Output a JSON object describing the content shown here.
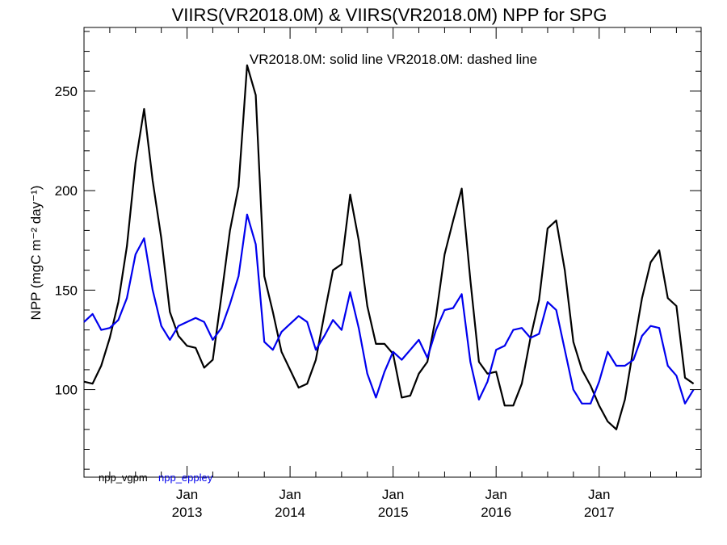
{
  "chart_data": {
    "type": "line",
    "title": "VIIRS(VR2018.0M) & VIIRS(VR2018.0M)  NPP for SPG",
    "annotation": "VR2018.0M: solid line   VR2018.0M: dashed line",
    "ylabel": "NPP (mgC m⁻² day⁻¹)",
    "xlabel": "",
    "ylim": [
      56,
      282
    ],
    "xlim": [
      2012.0,
      2017.99
    ],
    "y_ticks": [
      100,
      150,
      200,
      250
    ],
    "x_ticks": [
      {
        "value": 2013.0,
        "month": "Jan",
        "year": "2013"
      },
      {
        "value": 2014.0,
        "month": "Jan",
        "year": "2014"
      },
      {
        "value": 2015.0,
        "month": "Jan",
        "year": "2015"
      },
      {
        "value": 2016.0,
        "month": "Jan",
        "year": "2016"
      },
      {
        "value": 2017.0,
        "month": "Jan",
        "year": "2017"
      }
    ],
    "grid": false,
    "legend_position": "bottom-left",
    "x_start": 2012.0,
    "x_step": 0.08333,
    "series": [
      {
        "name": "npp_vgpm",
        "color": "#000000",
        "values": [
          104,
          103,
          112,
          126,
          144,
          172,
          214,
          241,
          205,
          176,
          139,
          127,
          122,
          121,
          111,
          115,
          147,
          180,
          202,
          263,
          248,
          157,
          139,
          119,
          110,
          101,
          103,
          115,
          138,
          160,
          163,
          198,
          175,
          142,
          123,
          123,
          118,
          96,
          97,
          108,
          114,
          137,
          168,
          185,
          201,
          155,
          114,
          108,
          109,
          92,
          92,
          103,
          126,
          145,
          181,
          185,
          160,
          124,
          110,
          102,
          92,
          84,
          80,
          95,
          121,
          146,
          164,
          170,
          146,
          142,
          106,
          103
        ]
      },
      {
        "name": "npp_eppley",
        "color": "#0000ee",
        "values": [
          134,
          138,
          130,
          131,
          135,
          146,
          168,
          176,
          150,
          132,
          125,
          132,
          134,
          136,
          134,
          125,
          131,
          143,
          157,
          188,
          173,
          124,
          120,
          129,
          133,
          137,
          134,
          120,
          127,
          135,
          130,
          149,
          131,
          108,
          96,
          109,
          119,
          115,
          120,
          125,
          116,
          130,
          140,
          141,
          148,
          114,
          95,
          104,
          120,
          122,
          130,
          131,
          126,
          128,
          144,
          140,
          120,
          100,
          93,
          93,
          104,
          119,
          112,
          112,
          115,
          127,
          132,
          131,
          112,
          107,
          93,
          100
        ]
      }
    ]
  }
}
